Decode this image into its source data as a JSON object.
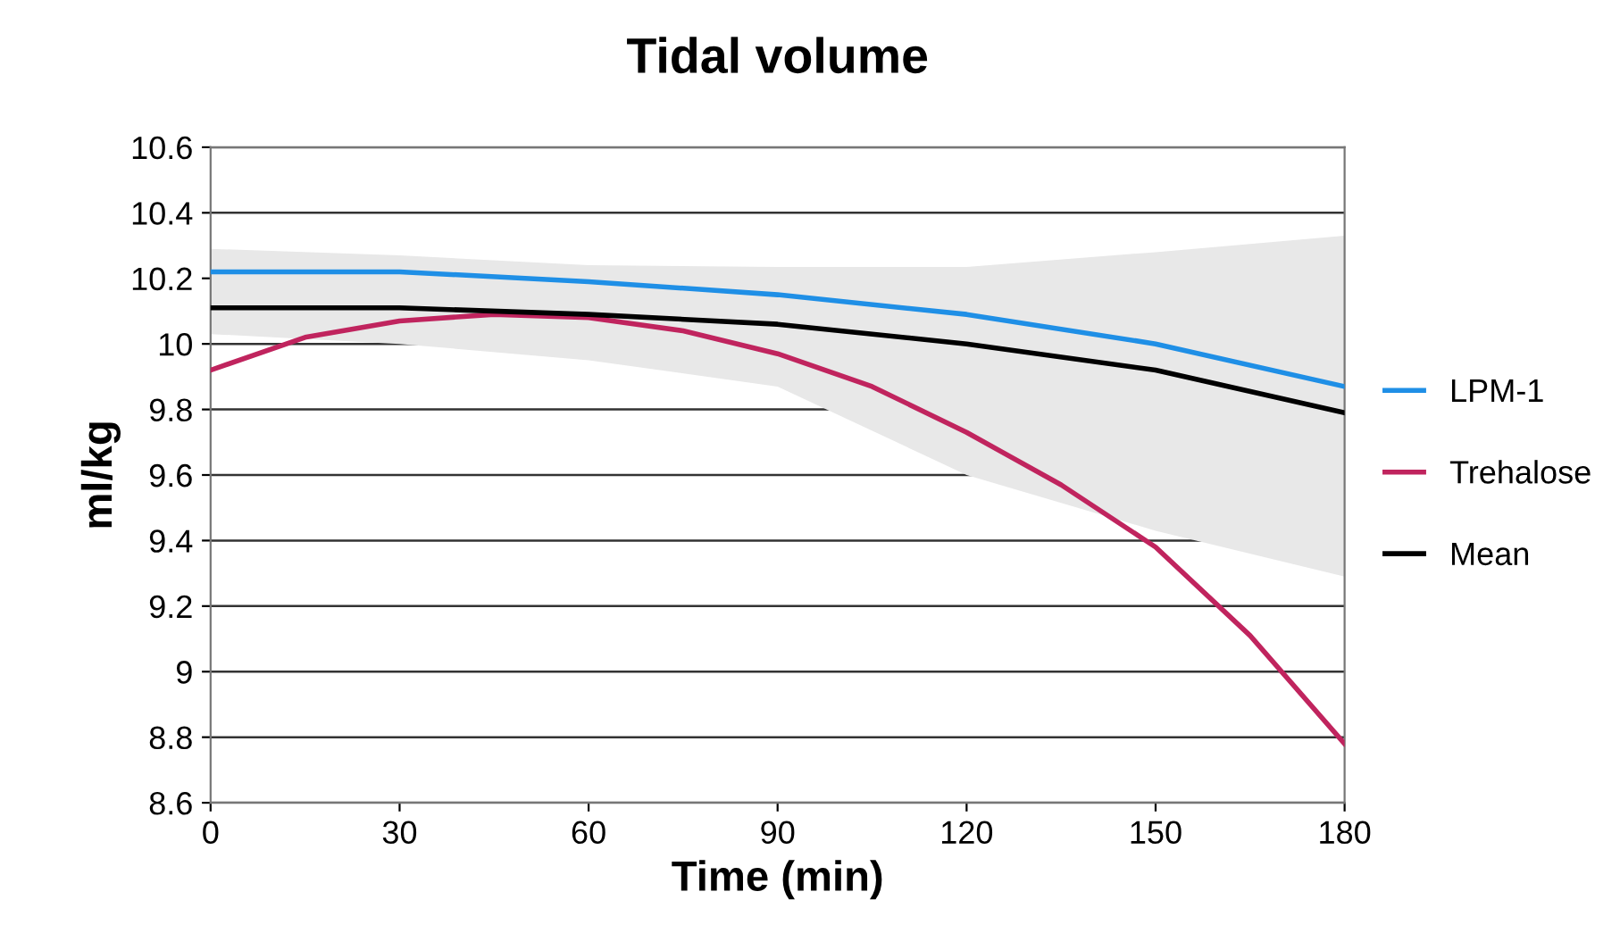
{
  "chart_data": {
    "type": "line",
    "title": "Tidal volume",
    "xlabel": "Time (min)",
    "ylabel": "ml/kg",
    "xlim": [
      0,
      180
    ],
    "xticks": [
      0,
      30,
      60,
      90,
      120,
      150,
      180
    ],
    "ylim": [
      8.6,
      10.6
    ],
    "yticks": [
      8.6,
      8.8,
      9,
      9.2,
      9.4,
      9.6,
      9.8,
      10,
      10.2,
      10.4,
      10.6
    ],
    "grid": "y",
    "legend": "right",
    "marker": "none",
    "line_style": "solid",
    "series": [
      {
        "name": "LPM-1",
        "color": "#1f8fe6",
        "x": [
          0,
          30,
          60,
          90,
          120,
          150,
          180
        ],
        "values": [
          10.22,
          10.22,
          10.19,
          10.15,
          10.09,
          10.0,
          9.87
        ]
      },
      {
        "name": "Trehalose",
        "color": "#c0245e",
        "x": [
          0,
          15,
          30,
          45,
          60,
          75,
          90,
          105,
          120,
          135,
          150,
          165,
          180
        ],
        "values": [
          9.92,
          10.02,
          10.07,
          10.09,
          10.08,
          10.04,
          9.97,
          9.87,
          9.73,
          9.57,
          9.38,
          9.11,
          8.78
        ]
      },
      {
        "name": "Mean",
        "color": "#000000",
        "x": [
          0,
          30,
          60,
          90,
          120,
          150,
          180
        ],
        "values": [
          10.11,
          10.11,
          10.09,
          10.06,
          10.0,
          9.92,
          9.79
        ],
        "lower": [
          10.03,
          10.0,
          9.95,
          9.87,
          9.6,
          9.43,
          9.29
        ],
        "upper": [
          10.29,
          10.27,
          10.24,
          10.235,
          10.235,
          10.28,
          10.33
        ]
      }
    ]
  }
}
